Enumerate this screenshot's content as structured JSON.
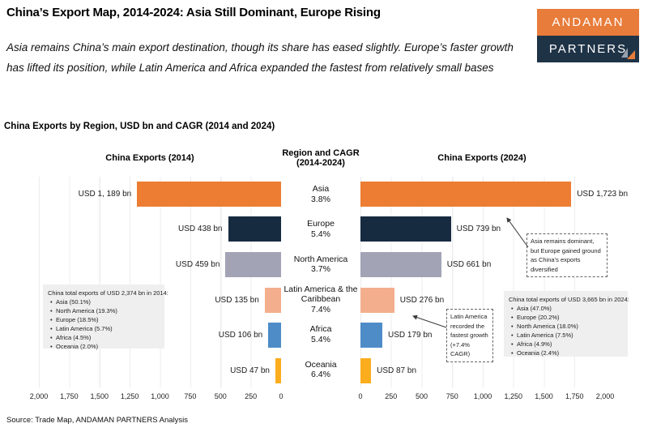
{
  "header": {
    "title": "China’s Export Map, 2014-2024: Asia Still Dominant, Europe Rising",
    "subtitle": "Asia remains China’s main export destination, though its share has eased slightly. Europe’s faster growth has lifted its position, while Latin America and Africa expanded the fastest from relatively small bases",
    "logo": {
      "line1": "ANDAMAN",
      "line2": "PARTNERS",
      "orange": "#E87C3A",
      "navy": "#1F3347"
    }
  },
  "chart_data": {
    "type": "bar",
    "title": "China Exports by Region, USD bn and CAGR (2014 and 2024)",
    "unit": "USD bn",
    "orientation": "horizontal-mirrored",
    "xlim": [
      0,
      2000
    ],
    "grid": true,
    "panel_titles": {
      "left": "China Exports (2014)",
      "center_line1": "Region and CAGR",
      "center_line2": "(2014-2024)",
      "right": "China Exports (2024)"
    },
    "categories": [
      "Asia",
      "Europe",
      "North America",
      "Latin America & the Caribbean",
      "Africa",
      "Oceania"
    ],
    "cagr": [
      "3.8%",
      "5.4%",
      "3.7%",
      "7.4%",
      "5.4%",
      "6.4%"
    ],
    "series": [
      {
        "name": "China Exports (2014)",
        "values": [
          1189,
          438,
          459,
          135,
          106,
          47
        ],
        "labels": [
          "USD 1, 189 bn",
          "USD 438 bn",
          "USD 459 bn",
          "USD 135 bn",
          "USD 106 bn",
          "USD 47 bn"
        ]
      },
      {
        "name": "China Exports (2024)",
        "values": [
          1723,
          739,
          661,
          276,
          179,
          87
        ],
        "labels": [
          "USD 1,723 bn",
          "USD 739 bn",
          "USD 661 bn",
          "USD 276 bn",
          "USD 179 bn",
          "USD 87 bn"
        ]
      }
    ],
    "bar_colors": [
      "#EC7D33",
      "#172B40",
      "#A2A3B5",
      "#F3AF8D",
      "#4E8CC8",
      "#FBAD1E"
    ],
    "grid_color": "#ECECEC",
    "ticks_left": [
      "2,000",
      "1,750",
      "1,500",
      "1,250",
      "1,000",
      "750",
      "500",
      "250",
      "0"
    ],
    "ticks_right": [
      "0",
      "250",
      "500",
      "750",
      "1,000",
      "1,250",
      "1,500",
      "1,750",
      "2,000"
    ]
  },
  "annotations": {
    "asia_note": "Asia remains dominant, but Europe gained ground as China’s exports diversified",
    "latam_note": "Latin America recorded the fastest growth (+7.4% CAGR)",
    "box_2014": {
      "title": "China total exports of USD 2,374 bn in 2014:",
      "items": [
        "Asia (50.1%)",
        "North America (19.3%)",
        "Europe (18.5%)",
        "Latin America (5.7%)",
        "Africa (4.5%)",
        "Oceania (2.0%)"
      ]
    },
    "box_2024": {
      "title": "China total exports of USD 3,665 bn in 2024:",
      "items": [
        "Asia (47.0%)",
        "Europe (20.2%)",
        "North America (18.0%)",
        "Latin America (7.5%)",
        "Africa (4.9%)",
        "Oceania (2.4%)"
      ]
    }
  },
  "source": "Source: Trade Map, ANDAMAN PARTNERS Analysis"
}
